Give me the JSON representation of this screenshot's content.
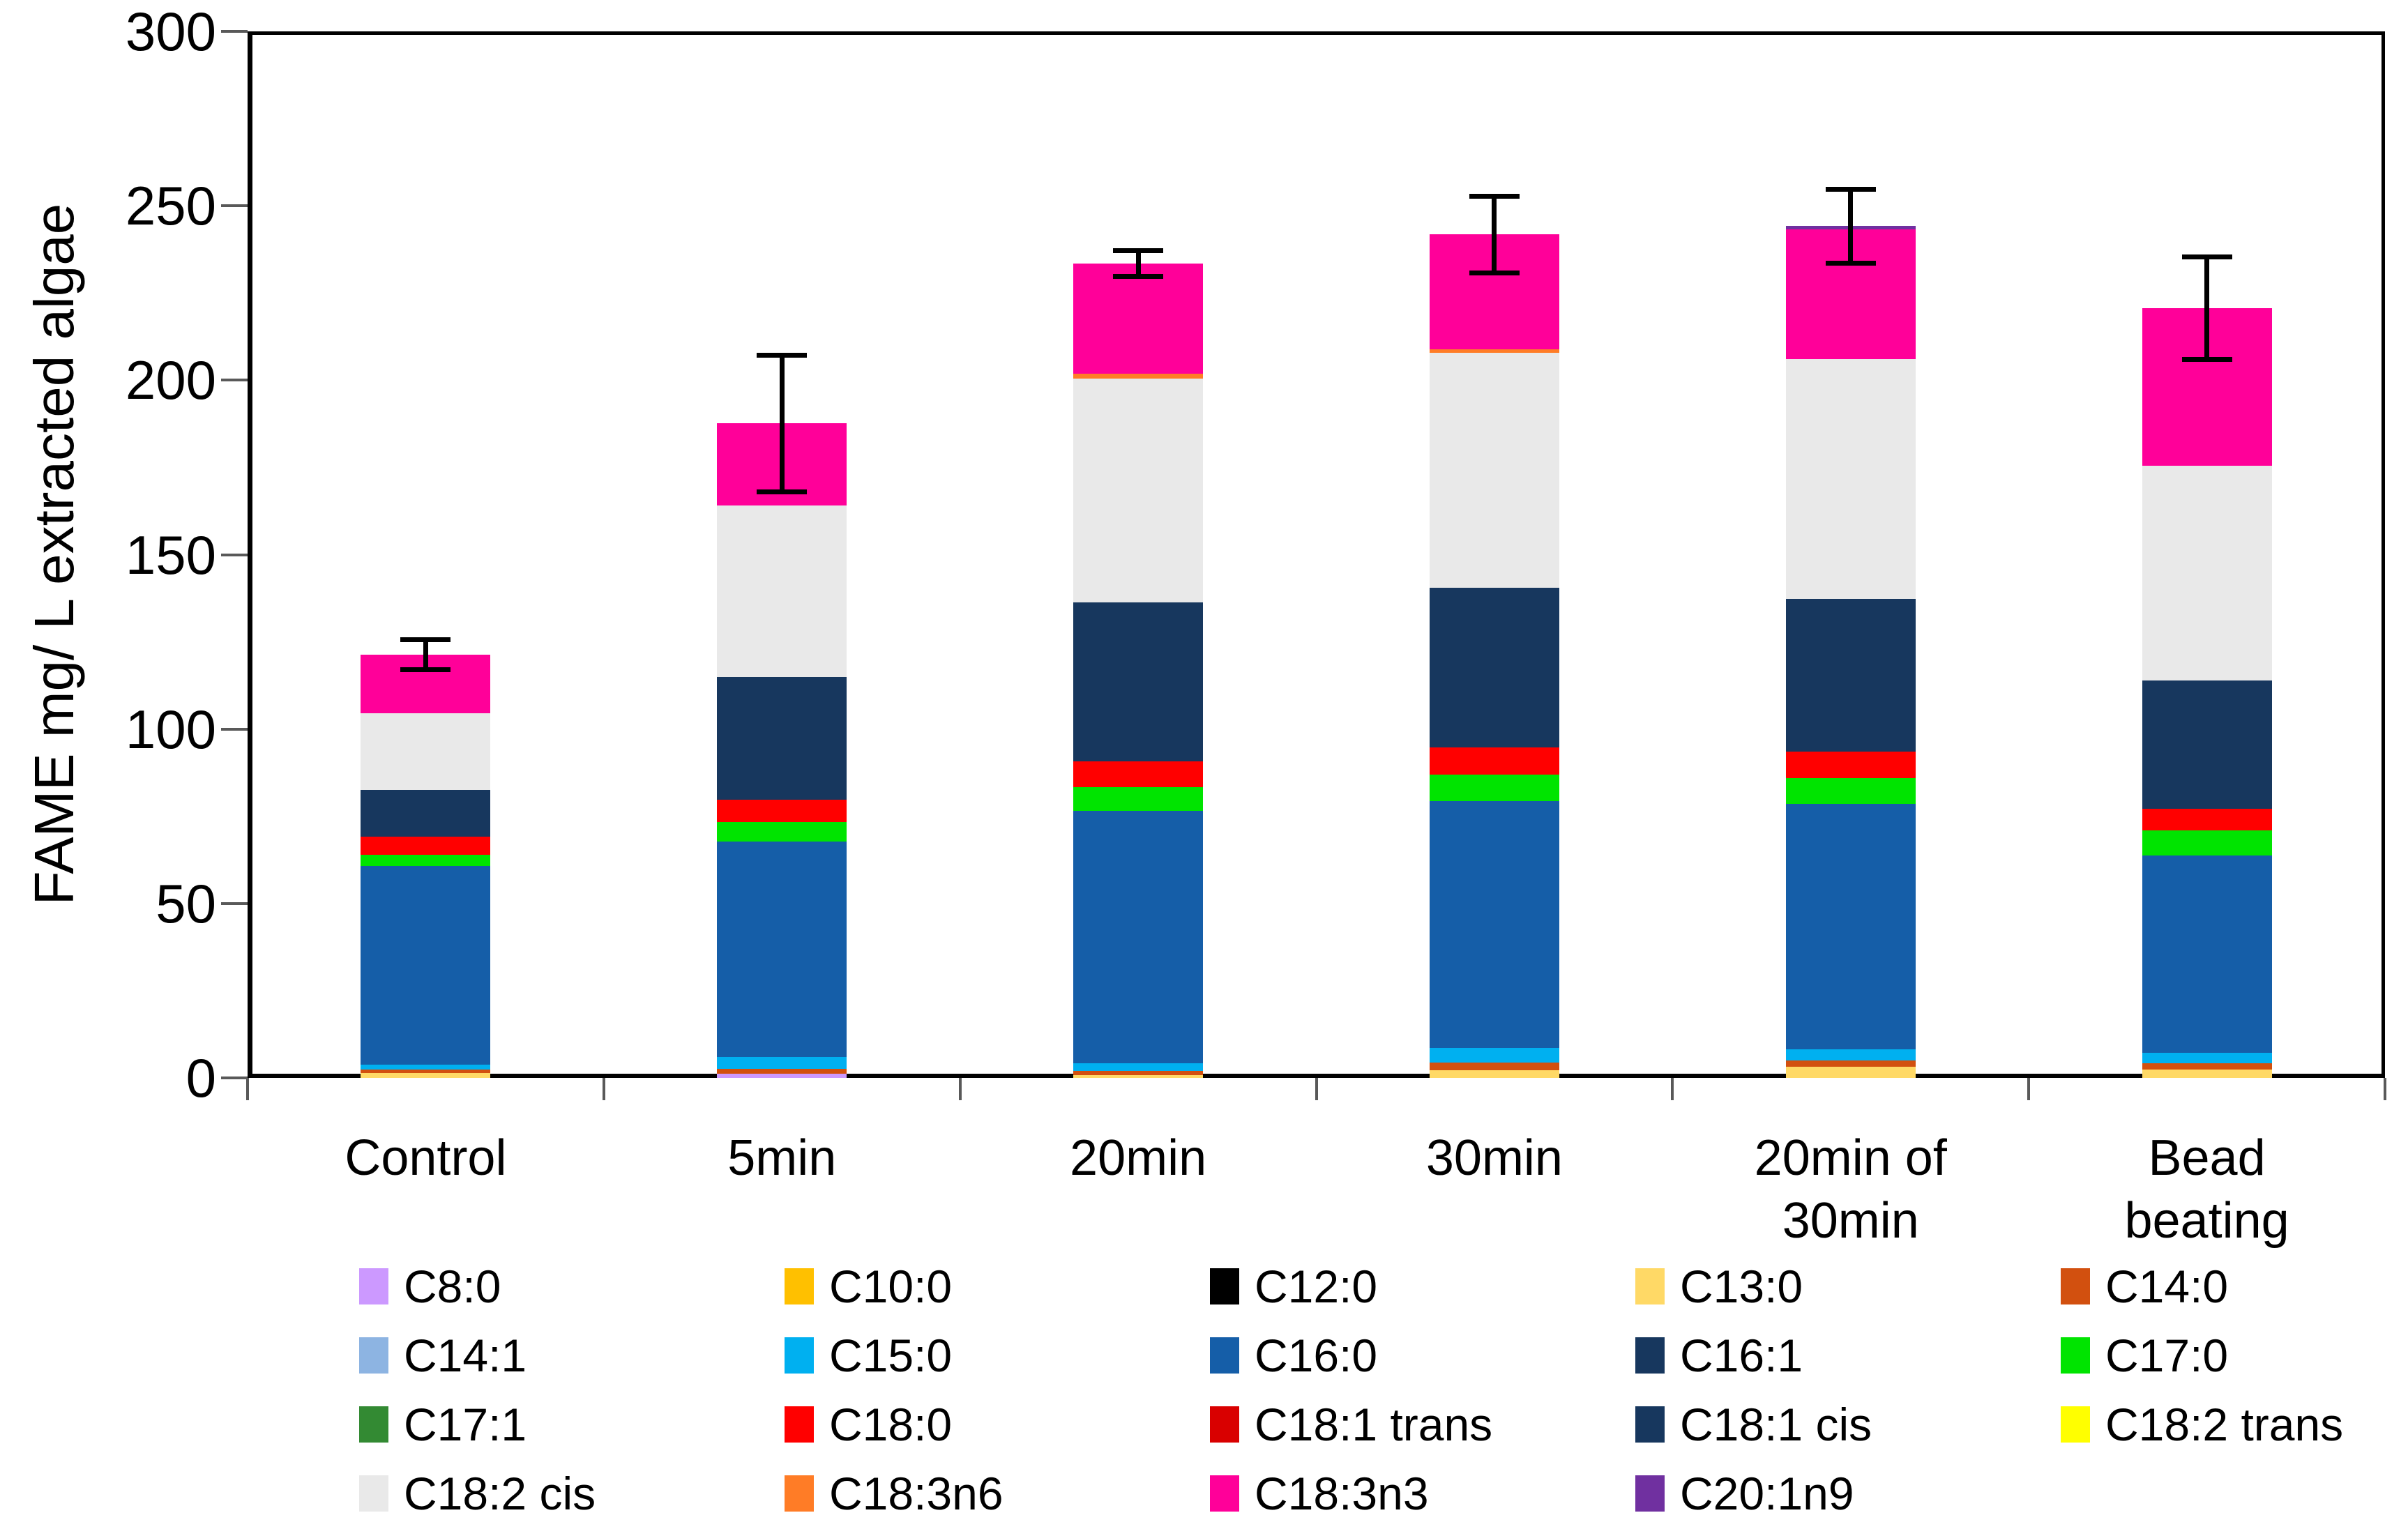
{
  "y_axis": {
    "label": "FAME mg/ L extracted algae",
    "ticks": [
      "0",
      "50",
      "100",
      "150",
      "200",
      "250",
      "300"
    ],
    "min": 0,
    "max": 300
  },
  "chart_data": {
    "type": "bar",
    "stacked": true,
    "grid": false,
    "legend_position": "bottom",
    "legend_columns": 5,
    "background": "#FFFFFF",
    "axis_color": "#000000",
    "tick_color": "#595959",
    "ylabel": "FAME mg/ L extracted algae",
    "xlabel": "",
    "ylim": [
      0,
      300
    ],
    "ytick_step": 50,
    "categories": [
      "Control",
      "5min",
      "20min",
      "30min",
      "20min of\n30min",
      "Bead beating"
    ],
    "series": [
      {
        "name": "C8:0",
        "color": "#CC99FF",
        "values": [
          0,
          1.2,
          0,
          0,
          0,
          0
        ]
      },
      {
        "name": "C10:0",
        "color": "#FFC000",
        "values": [
          0,
          0,
          0,
          0,
          0,
          0
        ]
      },
      {
        "name": "C12:0",
        "color": "#000000",
        "values": [
          0,
          0,
          0,
          0,
          0,
          0
        ]
      },
      {
        "name": "C13:0",
        "color": "#FFD966",
        "values": [
          1.4,
          0,
          0.8,
          2.2,
          3.2,
          2.3
        ]
      },
      {
        "name": "C14:0",
        "color": "#D2500F",
        "values": [
          1.0,
          1.4,
          1.1,
          2.2,
          1.8,
          1.9
        ]
      },
      {
        "name": "C14:1",
        "color": "#8DB4E2",
        "values": [
          0,
          0,
          0,
          0,
          0,
          0
        ]
      },
      {
        "name": "C15:0",
        "color": "#00B0F0",
        "values": [
          1.4,
          3.3,
          2.3,
          4.2,
          3.2,
          3.0
        ]
      },
      {
        "name": "C16:0",
        "color": "#155EA8",
        "values": [
          57.0,
          61.9,
          72.3,
          70.7,
          70.3,
          56.5
        ]
      },
      {
        "name": "C16:1",
        "color": "#17375E",
        "values": [
          0,
          0,
          0,
          0,
          0,
          0
        ]
      },
      {
        "name": "C17:0",
        "color": "#00E400",
        "values": [
          3.1,
          5.6,
          6.9,
          7.7,
          7.4,
          7.2
        ]
      },
      {
        "name": "C17:1",
        "color": "#338A33",
        "values": [
          0,
          0,
          0,
          0,
          0,
          0
        ]
      },
      {
        "name": "C18:0",
        "color": "#FF0000",
        "values": [
          5.3,
          6.3,
          7.4,
          7.8,
          7.7,
          6.3
        ]
      },
      {
        "name": "C18:1 trans",
        "color": "#D90000",
        "values": [
          0,
          0,
          0,
          0,
          0,
          0
        ]
      },
      {
        "name": "C18:1 cis",
        "color": "#17375E",
        "values": [
          13.3,
          35.2,
          45.6,
          45.8,
          43.7,
          36.8
        ]
      },
      {
        "name": "C18:2 trans",
        "color": "#FFFF00",
        "values": [
          0,
          0,
          0,
          0,
          0,
          0
        ]
      },
      {
        "name": "C18:2 cis",
        "color": "#E9E9E9",
        "values": [
          22.0,
          49.2,
          64.1,
          67.2,
          68.7,
          61.5
        ]
      },
      {
        "name": "C18:3n6",
        "color": "#FF7C26",
        "values": [
          0,
          0,
          1.3,
          1.0,
          0,
          0
        ]
      },
      {
        "name": "C18:3n3",
        "color": "#FF0099",
        "values": [
          16.9,
          23.5,
          31.7,
          33.0,
          37.2,
          45.2
        ]
      },
      {
        "name": "C20:1n9",
        "color": "#7030A0",
        "values": [
          0,
          0,
          0,
          0,
          1.0,
          0
        ]
      }
    ],
    "totals": [
      121.4,
      187.6,
      233.5,
      241.8,
      244.2,
      220.7
    ],
    "error_bars": [
      4.3,
      19.6,
      3.7,
      11.0,
      10.6,
      14.7
    ]
  }
}
